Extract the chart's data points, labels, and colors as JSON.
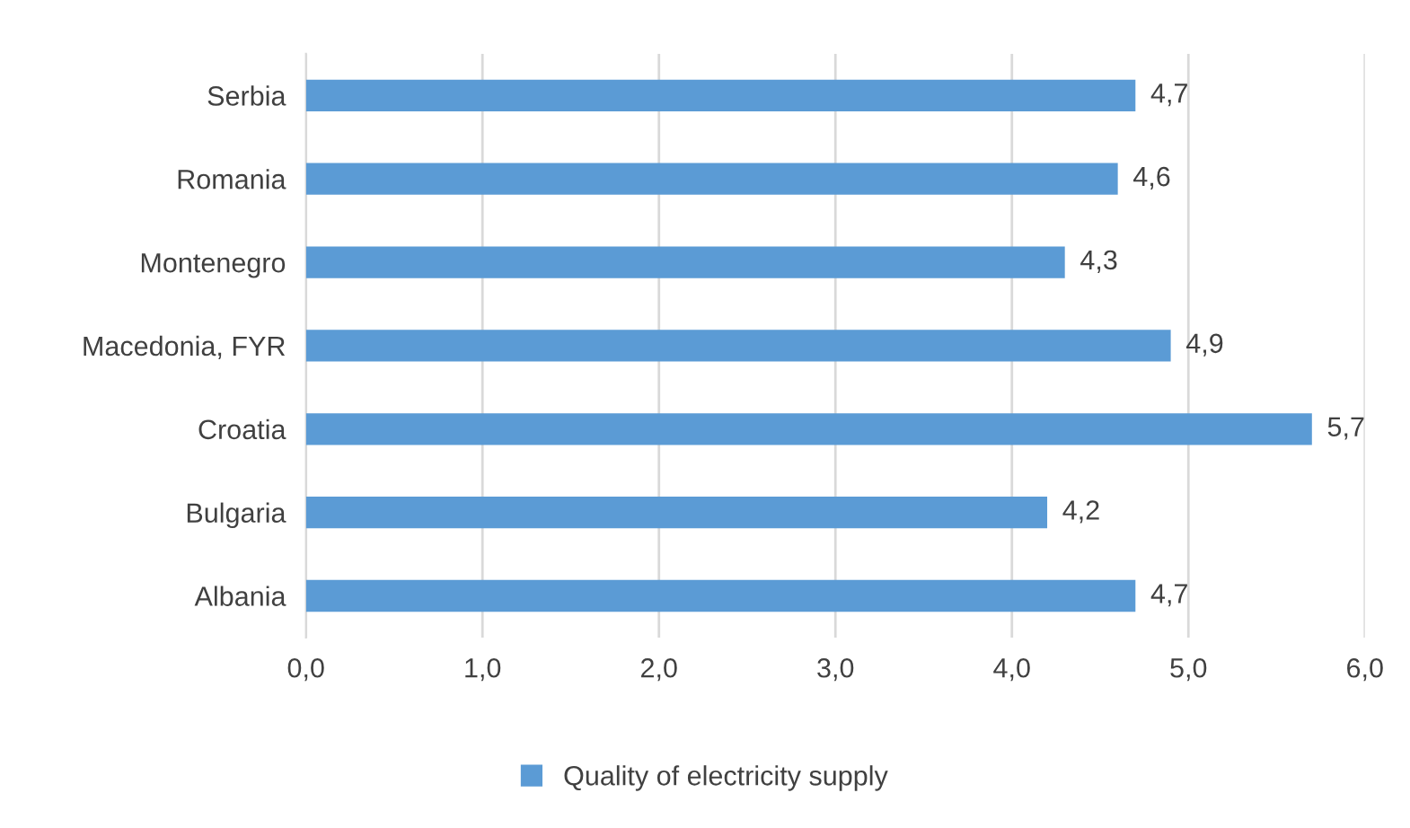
{
  "chart_data": {
    "type": "bar",
    "orientation": "horizontal",
    "categories": [
      "Serbia",
      "Romania",
      "Montenegro",
      "Macedonia, FYR",
      "Croatia",
      "Bulgaria",
      "Albania"
    ],
    "series": [
      {
        "name": "Quality of electricity supply",
        "color": "#5b9bd5",
        "values": [
          4.7,
          4.6,
          4.3,
          4.9,
          5.7,
          4.2,
          4.7
        ],
        "value_labels": [
          "4,7",
          "4,6",
          "4,3",
          "4,9",
          "5,7",
          "4,2",
          "4,7"
        ]
      }
    ],
    "xlim": [
      0,
      6
    ],
    "xticks": [
      {
        "value": 0,
        "label": "0,0"
      },
      {
        "value": 1,
        "label": "1,0"
      },
      {
        "value": 2,
        "label": "2,0"
      },
      {
        "value": 3,
        "label": "3,0"
      },
      {
        "value": 4,
        "label": "4,0"
      },
      {
        "value": 5,
        "label": "5,0"
      },
      {
        "value": 6,
        "label": "6,0"
      }
    ],
    "grid": "x",
    "legend": "bottom"
  }
}
